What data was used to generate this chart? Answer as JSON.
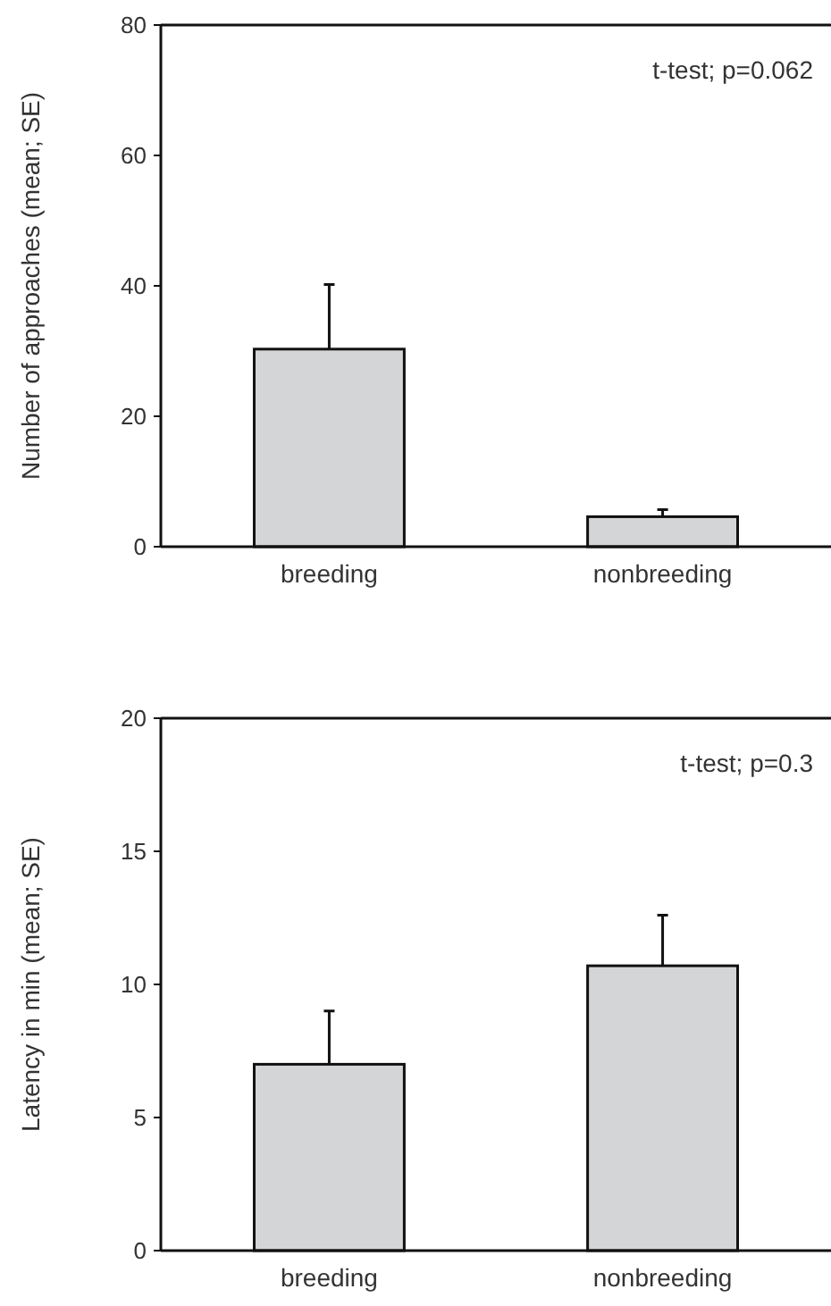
{
  "chart_data": [
    {
      "type": "bar",
      "ylabel": "Number of approaches (mean; SE)",
      "categories": [
        "breeding",
        "nonbreeding"
      ],
      "values": [
        30.3,
        4.6
      ],
      "errors": [
        [
          30.3,
          40.2
        ],
        [
          4.6,
          5.7
        ]
      ],
      "color": "#d4d5d7",
      "ylim": [
        0,
        80
      ],
      "yticks": [
        0,
        20,
        40,
        60,
        80
      ],
      "annotations": [
        "t-test; p=0.062"
      ]
    },
    {
      "type": "bar",
      "ylabel": "Latency in min (mean; SE)",
      "categories": [
        "breeding",
        "nonbreeding"
      ],
      "values": [
        7.0,
        10.7
      ],
      "errors": [
        [
          7.0,
          9.0
        ],
        [
          10.7,
          12.6
        ]
      ],
      "color": "#d4d5d7",
      "ylim": [
        0,
        20
      ],
      "yticks": [
        0,
        5,
        10,
        15,
        20
      ],
      "annotations": [
        "t-test; p=0.3"
      ]
    }
  ]
}
